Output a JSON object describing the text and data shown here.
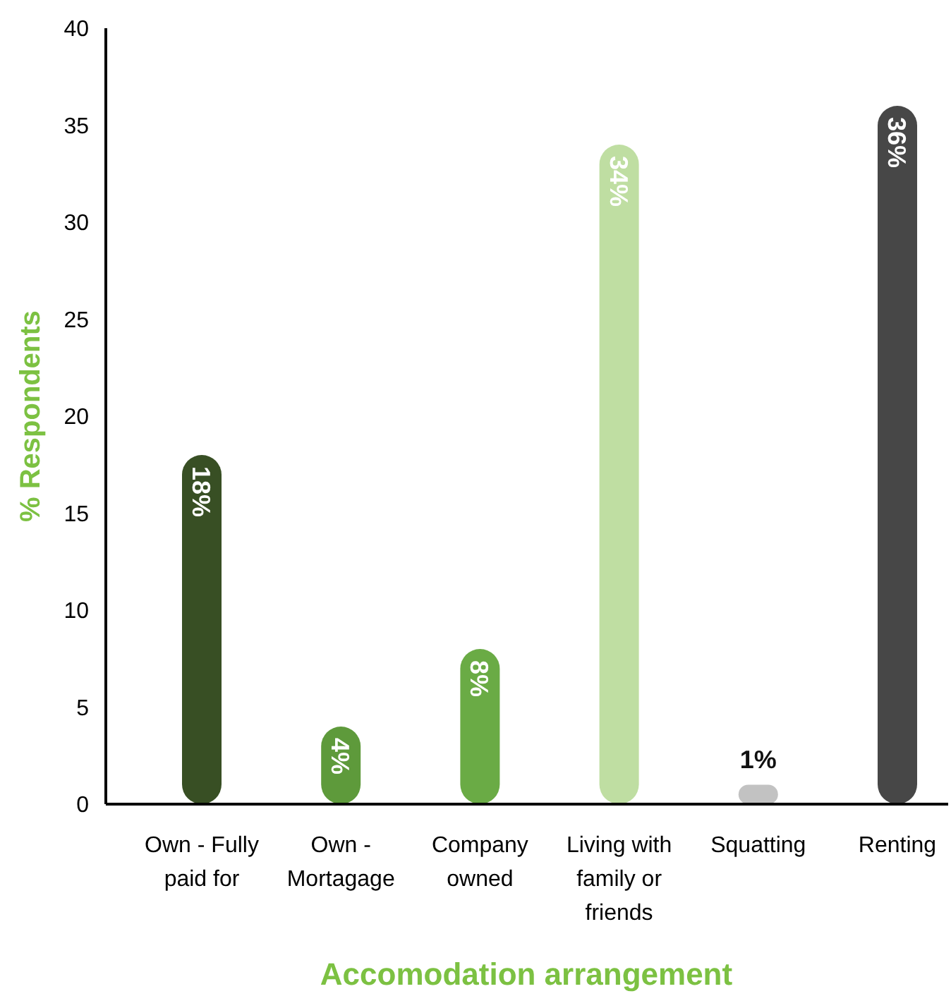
{
  "chart_data": {
    "type": "bar",
    "xlabel": "Accomodation arrangement",
    "ylabel": "% Respondents",
    "categories": [
      "Own - Fully paid for",
      "Own - Mortagage",
      "Company owned",
      "Living with family or friends",
      "Squatting",
      "Renting"
    ],
    "values": [
      18,
      4,
      8,
      34,
      1,
      36
    ],
    "colors": [
      "#384f24",
      "#5e9a3b",
      "#6aab45",
      "#bfdea2",
      "#c2c2c2",
      "#474747"
    ],
    "value_labels": [
      "18%",
      "4%",
      "8%",
      "34%",
      "1%",
      "36%"
    ],
    "ylim": [
      0,
      40
    ],
    "yticks": [
      0,
      5,
      10,
      15,
      20,
      25,
      30,
      35,
      40
    ],
    "grid": false
  }
}
